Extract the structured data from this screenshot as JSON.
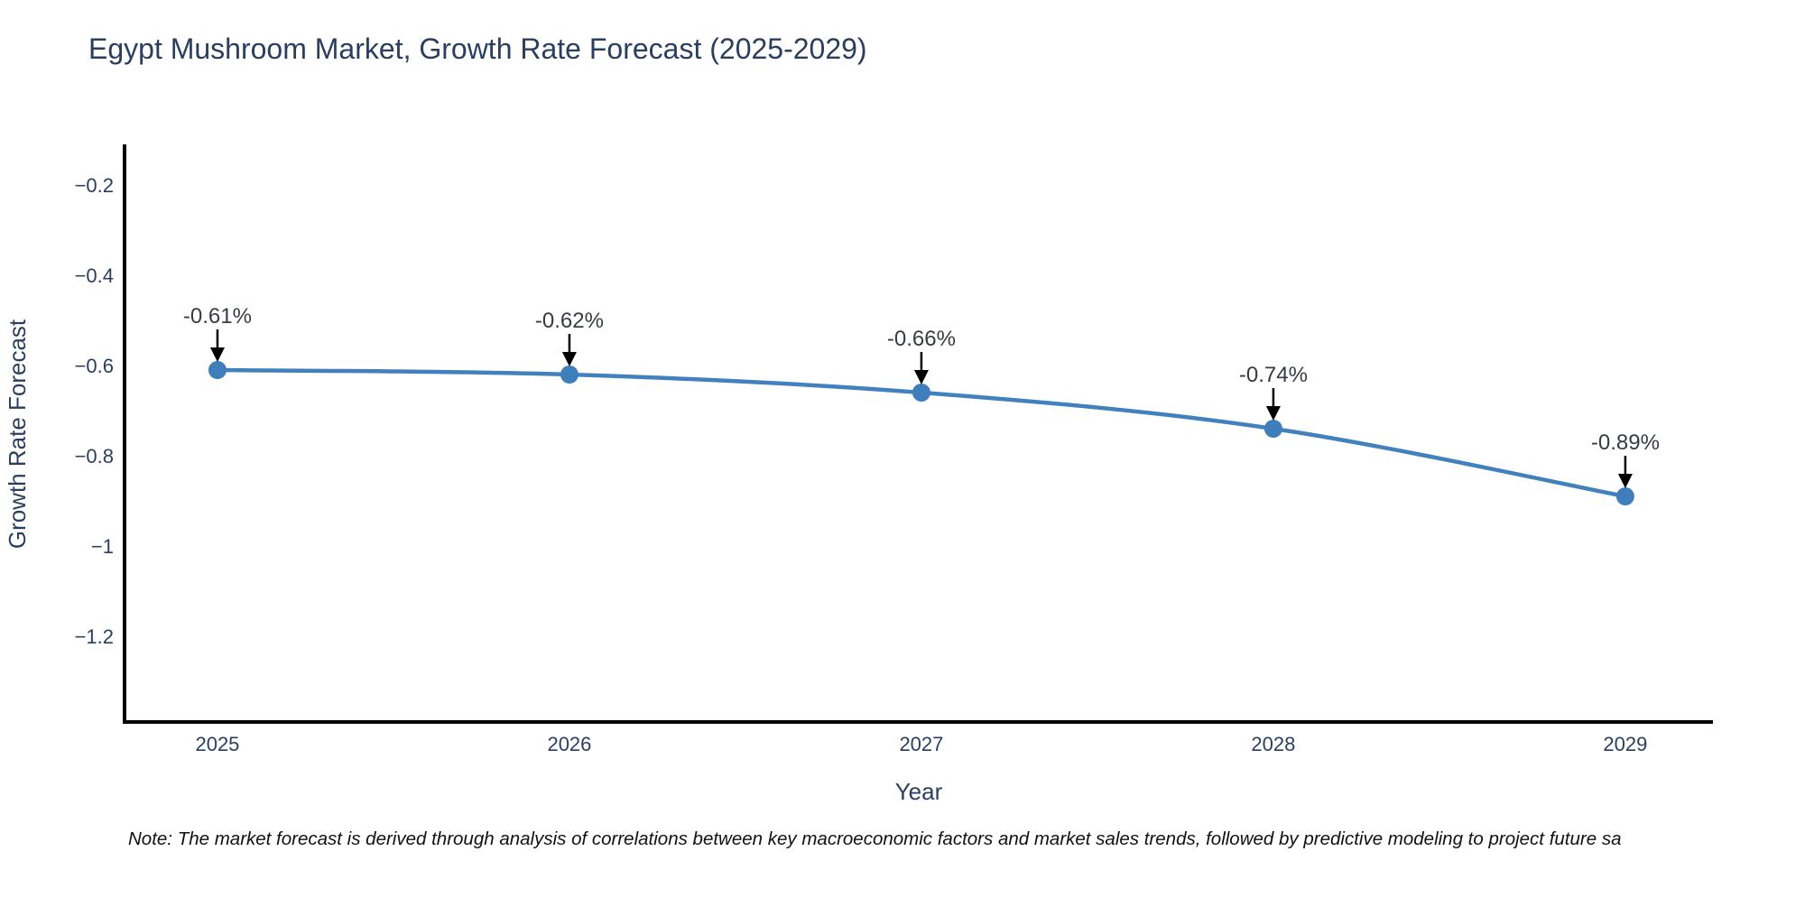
{
  "chart": {
    "title": "Egypt Mushroom Market, Growth Rate Forecast (2025-2029)",
    "note": "Note: The market forecast is derived through analysis of correlations between key macroeconomic factors and market sales trends, followed by predictive modeling to project future sa"
  },
  "chart_data": {
    "type": "line",
    "title": "Egypt Mushroom Market, Growth Rate Forecast (2025-2029)",
    "xlabel": "Year",
    "ylabel": "Growth Rate Forecast",
    "categories": [
      2025,
      2026,
      2027,
      2028,
      2029
    ],
    "values": [
      -0.61,
      -0.62,
      -0.66,
      -0.74,
      -0.89
    ],
    "point_labels": [
      "-0.61%",
      "-0.62%",
      "-0.66%",
      "-0.74%",
      "-0.89%"
    ],
    "xtick_labels": [
      "2025",
      "2026",
      "2027",
      "2028",
      "2029"
    ],
    "ytick_values": [
      -0.2,
      -0.4,
      -0.6,
      -0.8,
      -1.0,
      -1.2
    ],
    "ytick_labels": [
      "−0.2",
      "−0.4",
      "−0.6",
      "−0.8",
      "−1",
      "−1.2"
    ],
    "xlim": [
      2024.736,
      2029.249
    ],
    "ylim": [
      -1.39,
      -0.114
    ],
    "grid": false,
    "legend": false,
    "colors": {
      "line": "#4181bd",
      "marker": "#3d7ebb",
      "axis": "#000000",
      "tick_text": "#2a3f5f",
      "axis_title_text": "#2a3f5f",
      "annotation_text": "#363b45",
      "arrow": "#000000"
    }
  }
}
